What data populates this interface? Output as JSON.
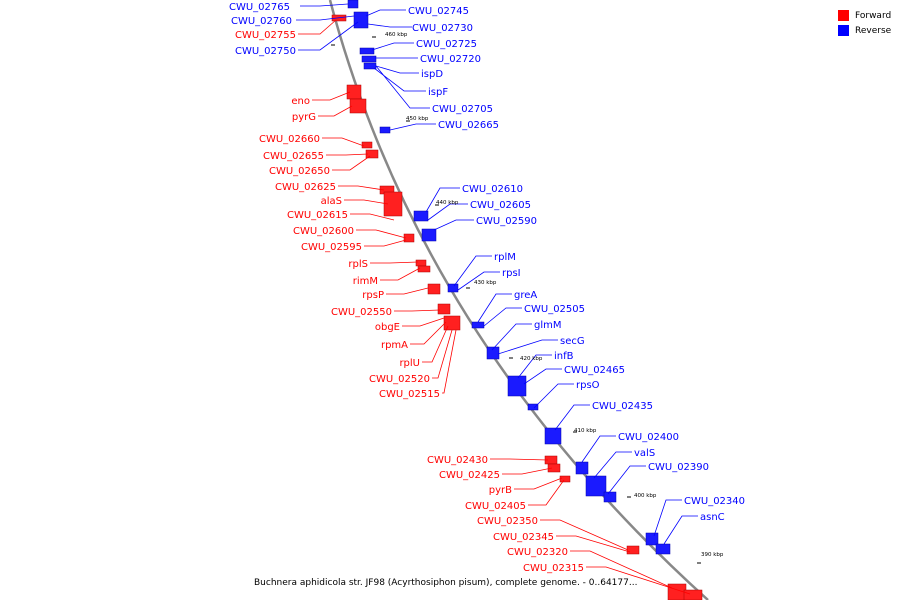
{
  "legend": {
    "forward_label": "Forward",
    "reverse_label": "Reverse",
    "forward_color": "#ff0000",
    "reverse_color": "#0000ff"
  },
  "caption": "Buchnera aphidicola str. JF98 (Acyrthosiphon pisum), complete genome. - 0..64177...",
  "ticks": [
    "460 kbp",
    "450 kbp",
    "440 kbp",
    "430 kbp",
    "420 kbp",
    "410 kbp",
    "400 kbp",
    "390 kbp"
  ],
  "forward_genes": [
    "CWU_02755",
    "eno",
    "pyrG",
    "CWU_02660",
    "CWU_02655",
    "CWU_02650",
    "CWU_02625",
    "alaS",
    "CWU_02615",
    "CWU_02600",
    "CWU_02595",
    "rplS",
    "rimM",
    "rpsP",
    "CWU_02550",
    "obgE",
    "rpmA",
    "rplU",
    "CWU_02520",
    "CWU_02515",
    "CWU_02430",
    "CWU_02425",
    "pyrB",
    "CWU_02405",
    "CWU_02350",
    "CWU_02345",
    "CWU_02320",
    "CWU_02315"
  ],
  "reverse_genes": [
    "CWU_02765",
    "CWU_02760",
    "CWU_02750",
    "CWU_02745",
    "CWU_02730",
    "CWU_02725",
    "CWU_02720",
    "ispD",
    "ispF",
    "CWU_02705",
    "CWU_02665",
    "CWU_02610",
    "CWU_02605",
    "CWU_02590",
    "rplM",
    "rpsI",
    "greA",
    "CWU_02505",
    "glmM",
    "secG",
    "infB",
    "CWU_02465",
    "rpsO",
    "CWU_02435",
    "CWU_02400",
    "valS",
    "CWU_02390",
    "CWU_02340",
    "asnC"
  ]
}
